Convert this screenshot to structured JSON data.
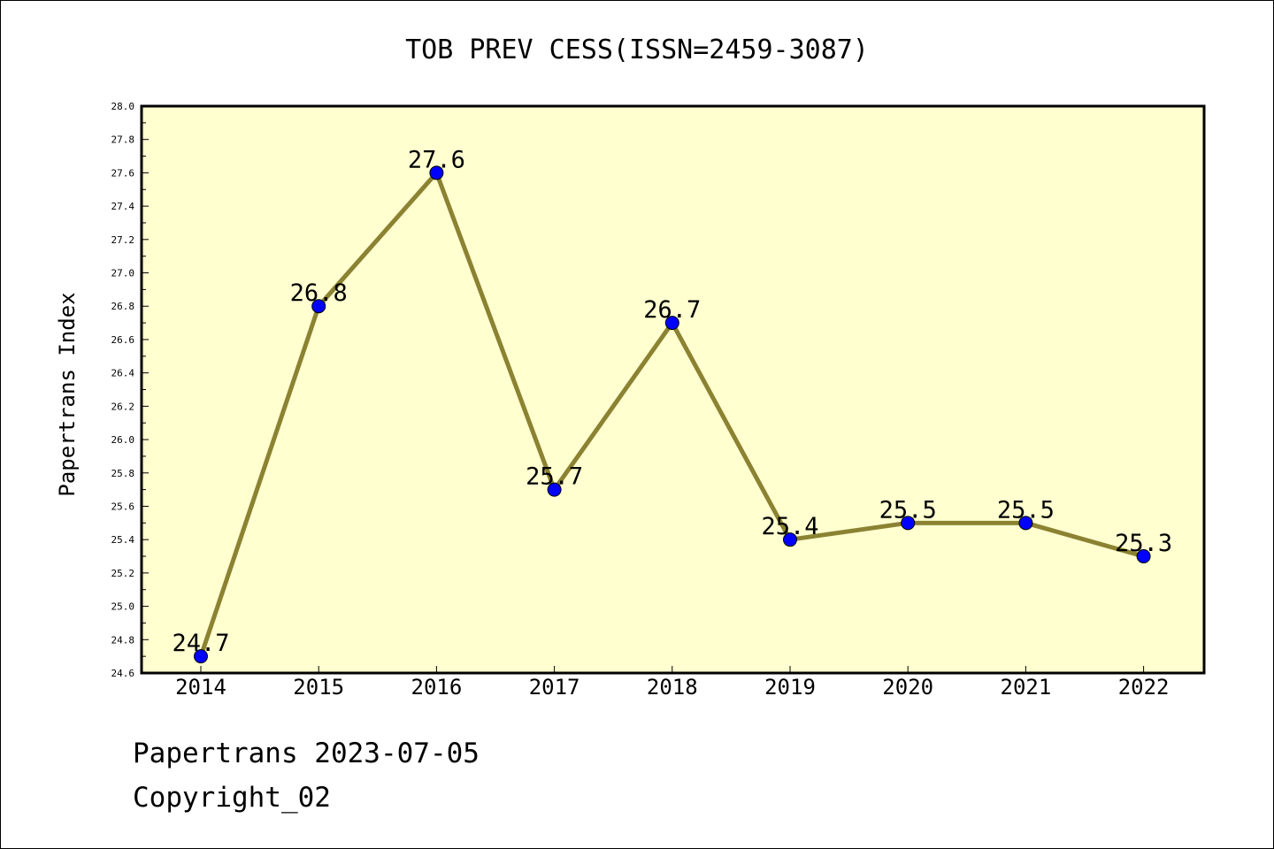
{
  "chart_data": {
    "type": "line",
    "title": "TOB PREV CESS(ISSN=2459-3087)",
    "xlabel": "",
    "ylabel": "Papertrans Index",
    "categories": [
      "2014",
      "2015",
      "2016",
      "2017",
      "2018",
      "2019",
      "2020",
      "2021",
      "2022"
    ],
    "values": [
      24.7,
      26.8,
      27.6,
      25.7,
      26.7,
      25.4,
      25.5,
      25.5,
      25.3
    ],
    "data_labels": [
      "24.7",
      "26.8",
      "27.6",
      "25.7",
      "26.7",
      "25.4",
      "25.5",
      "25.5",
      "25.3"
    ],
    "ylim": [
      24.6,
      28.0
    ],
    "yticks": [
      "24.6",
      "24.8",
      "25.0",
      "25.2",
      "25.4",
      "25.6",
      "25.8",
      "26.0",
      "26.2",
      "26.4",
      "26.6",
      "26.8",
      "27.0",
      "27.2",
      "27.4",
      "27.6",
      "27.8",
      "28.0"
    ],
    "grid": false,
    "colors": {
      "plot_background": "#ffffd0",
      "line": "#8b8232",
      "marker": "#0000ff"
    }
  },
  "footer": {
    "line1": "Papertrans 2023-07-05",
    "line2": "Copyright_02"
  }
}
